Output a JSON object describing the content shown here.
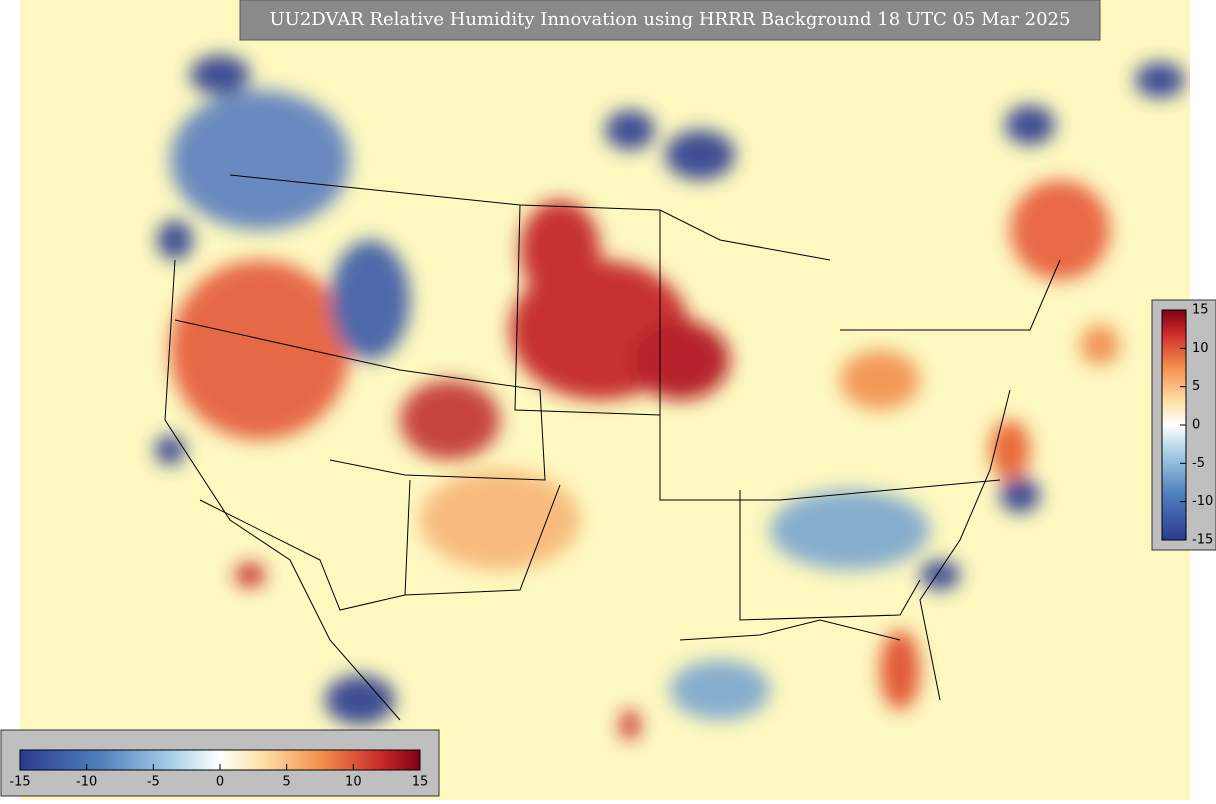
{
  "title": "UU2DVAR Relative Humidity Innovation using HRRR Background 18 UTC 05 Mar 2025",
  "colorbar_bottom": {
    "lim": [
      -15,
      15
    ],
    "ticks": [
      -15,
      -10,
      -5,
      0,
      5,
      10,
      15
    ]
  },
  "colorbar_right": {
    "lim": [
      -15,
      15
    ],
    "ticks": [
      15,
      10,
      5,
      0,
      -5,
      -10,
      -15
    ]
  }
}
